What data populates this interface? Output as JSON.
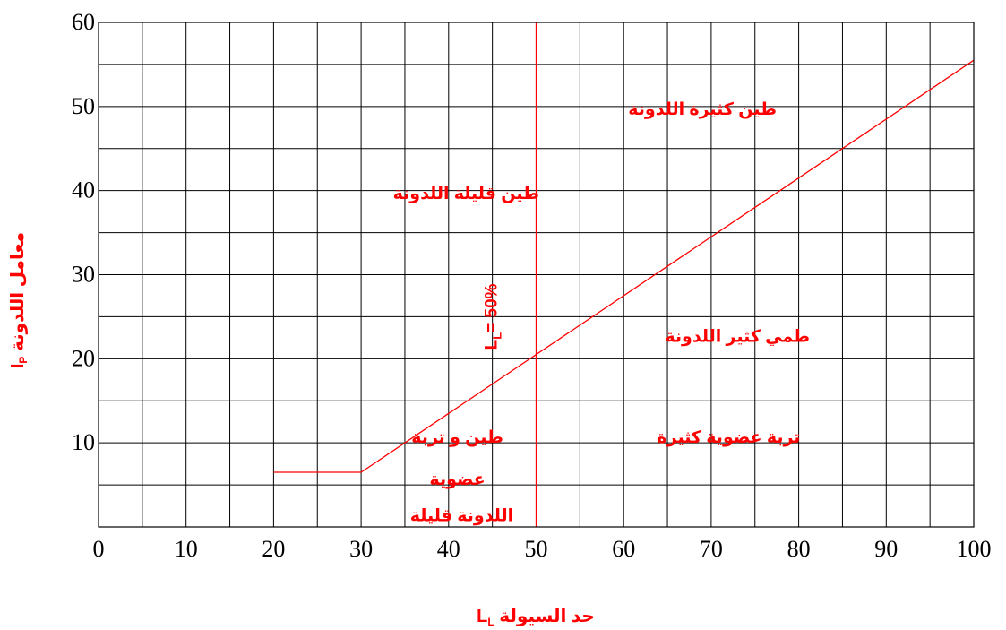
{
  "chart_data": {
    "type": "line",
    "xlim": [
      0,
      100
    ],
    "ylim": [
      0,
      60
    ],
    "x_ticks": [
      0,
      10,
      20,
      30,
      40,
      50,
      60,
      70,
      80,
      90,
      100
    ],
    "y_ticks": [
      10,
      20,
      30,
      40,
      50,
      60
    ],
    "x_tick_labels": [
      "0",
      "10",
      "20",
      "30",
      "40",
      "50",
      "60",
      "70",
      "80",
      "90",
      "100"
    ],
    "y_tick_labels": [
      "10",
      "20",
      "30",
      "40",
      "50",
      "60"
    ],
    "grid": true,
    "xlabel": "حد السيولة L",
    "xlabel_sub": "L",
    "ylabel": "معامل اللدونة I",
    "ylabel_sub": "P",
    "series": [
      {
        "values_x": [
          20,
          30
        ],
        "values_y": [
          6.5,
          6.5
        ],
        "color": "#ff0000"
      },
      {
        "values_x": [
          30,
          100
        ],
        "values_y": [
          6.5,
          55.5
        ],
        "color": "#ff0000"
      },
      {
        "values_x": [
          50,
          50
        ],
        "values_y": [
          0,
          60
        ],
        "color": "#ff0000"
      }
    ],
    "annotations": [
      {
        "text": "طين كثيرة اللدونة",
        "x": 69,
        "y": 49
      },
      {
        "text": "طين قليلة اللدونة",
        "x": 42,
        "y": 39
      },
      {
        "text": "L",
        "sub": "L",
        "suffix": "= 50%",
        "x": 45.5,
        "y": 25,
        "rotation": -90
      },
      {
        "text": "طمي كثير اللدونة",
        "x": 73,
        "y": 22
      },
      {
        "text": "تربة عضوية كثيرة",
        "x": 72,
        "y": 10
      },
      {
        "text": "طين و تربة",
        "x": 41,
        "y": 10
      },
      {
        "text": "عضوية",
        "x": 41,
        "y": 5
      },
      {
        "text": "اللدونة قليلة",
        "x": 41.5,
        "y": 0.7
      }
    ]
  }
}
